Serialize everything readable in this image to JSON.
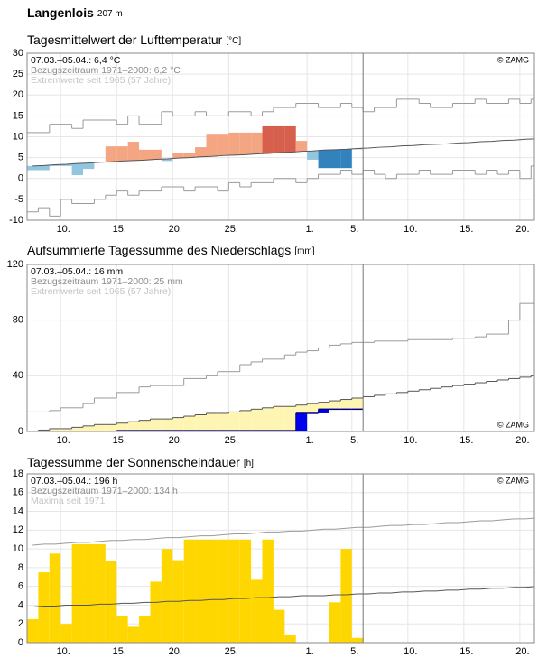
{
  "header": {
    "title": "Langenlois",
    "elevation": "207 m"
  },
  "chart_data": [
    {
      "type": "bar",
      "title": "Tagesmittelwert der Lufttemperatur",
      "unit": "[°C]",
      "notes": [
        "07.03.–05.04.: 6,4 °C",
        "Bezugszeitraum 1971–2000: 6,2 °C",
        "Extremwerte seit 1965 (57 Jahre)"
      ],
      "note_colors": [
        "#000000",
        "#8c8c8c",
        "#c4c4c4"
      ],
      "copyright": "© ZAMG",
      "copyright_corner": "top-right",
      "xlim": [
        0,
        45.3
      ],
      "xticks": [
        {
          "value": 3,
          "label": "10."
        },
        {
          "value": 8,
          "label": "15."
        },
        {
          "value": 13,
          "label": "20."
        },
        {
          "value": 18,
          "label": "25."
        },
        {
          "value": 25,
          "label": "1."
        },
        {
          "value": 29,
          "label": "5."
        },
        {
          "value": 34,
          "label": "10."
        },
        {
          "value": 39,
          "label": "15."
        },
        {
          "value": 44,
          "label": "20."
        }
      ],
      "ylim": [
        -10,
        30
      ],
      "yticks": [
        -10,
        -5,
        0,
        5,
        10,
        15,
        20,
        25,
        30
      ],
      "grid": true,
      "series": [
        {
          "style": "bars",
          "base_series": 1,
          "values": [
            2,
            2,
            3,
            3,
            0.8,
            2.3,
            3.8,
            7.7,
            7.7,
            8.8,
            6.9,
            6.9,
            4.2,
            6,
            6,
            7.5,
            10.5,
            10.5,
            11,
            11,
            11,
            12.5,
            12.5,
            12.5,
            9,
            4.5,
            2.5,
            2.5,
            2.5,
            7
          ],
          "colors": [
            "#92c5de",
            "#92c5de",
            "#92c5de",
            "#92c5de",
            "#92c5de",
            "#92c5de",
            "#92c5de",
            "#f4a582",
            "#f4a582",
            "#f4a582",
            "#f4a582",
            "#f4a582",
            "#92c5de",
            "#f4a582",
            "#f4a582",
            "#f4a582",
            "#f4a582",
            "#f4a582",
            "#f4a582",
            "#f4a582",
            "#f4a582",
            "#d6604d",
            "#d6604d",
            "#d6604d",
            "#f4a582",
            "#92c5de",
            "#3182bd",
            "#3182bd",
            "#3182bd",
            "#92c5de"
          ]
        },
        {
          "style": "line",
          "color": "#555555",
          "values": [
            3.0,
            3.1,
            3.3,
            3.4,
            3.6,
            3.7,
            3.9,
            4.0,
            4.2,
            4.3,
            4.4,
            4.6,
            4.7,
            4.9,
            5.0,
            5.2,
            5.3,
            5.5,
            5.6,
            5.7,
            5.9,
            6.0,
            6.2,
            6.3,
            6.5,
            6.6,
            6.8,
            6.9,
            7.0,
            7.2,
            7.3,
            7.5,
            7.6,
            7.8,
            7.9,
            8.1,
            8.2,
            8.3,
            8.5,
            8.6,
            8.8,
            8.9,
            9.1,
            9.2,
            9.4,
            9.5
          ]
        },
        {
          "style": "step",
          "color": "#9a9a9a",
          "values": [
            11,
            11,
            13,
            13,
            12,
            14,
            14,
            14,
            13,
            15,
            13,
            13,
            16,
            15,
            15,
            16,
            15,
            15,
            16,
            16,
            15,
            16,
            17,
            17,
            18,
            18,
            17,
            17,
            18,
            17,
            16,
            17,
            17,
            19,
            19,
            18,
            17,
            17,
            18,
            18,
            19,
            18,
            18,
            19,
            18,
            19
          ]
        },
        {
          "style": "step",
          "color": "#9a9a9a",
          "values": [
            -8,
            -7,
            -9,
            -5,
            -6,
            -6,
            -5,
            -4,
            -3,
            -4,
            -3,
            -3,
            -2,
            -2,
            -3,
            -2,
            -2,
            -3,
            -1,
            -2,
            -1,
            -1,
            0,
            0,
            -1,
            0,
            1,
            1,
            2,
            1,
            2,
            1,
            0,
            1,
            1,
            2,
            1,
            1,
            2,
            2,
            1,
            2,
            1,
            2,
            0,
            3
          ]
        }
      ]
    },
    {
      "type": "area",
      "title": "Aufsummierte Tagessumme des Niederschlags",
      "unit": "[mm]",
      "notes": [
        "07.03.–05.04.: 16 mm",
        "Bezugszeitraum 1971–2000: 25 mm",
        "Extremwerte seit 1965 (57 Jahre)"
      ],
      "note_colors": [
        "#000000",
        "#8c8c8c",
        "#c4c4c4"
      ],
      "copyright": "© ZAMG",
      "copyright_corner": "bottom-right",
      "xlim": [
        0,
        45.3
      ],
      "xticks": [
        {
          "value": 3,
          "label": "10."
        },
        {
          "value": 8,
          "label": "15."
        },
        {
          "value": 13,
          "label": "20."
        },
        {
          "value": 18,
          "label": "25."
        },
        {
          "value": 25,
          "label": "1."
        },
        {
          "value": 29,
          "label": "5."
        },
        {
          "value": 34,
          "label": "10."
        },
        {
          "value": 39,
          "label": "15."
        },
        {
          "value": 44,
          "label": "20."
        }
      ],
      "ylim": [
        0,
        120
      ],
      "yticks": [
        0,
        40,
        80,
        120
      ],
      "grid": true,
      "series": [
        {
          "style": "step",
          "color": "#00008b",
          "increment_color": "#0000ee",
          "values": [
            0,
            0,
            0,
            0,
            0,
            0,
            0,
            0,
            0.6,
            0.6,
            0.6,
            0.6,
            0.6,
            0.6,
            0.6,
            0.6,
            0.6,
            0.6,
            0.6,
            0.6,
            0.6,
            0.6,
            0.6,
            0.6,
            13,
            13,
            16,
            16,
            16,
            16
          ]
        },
        {
          "style": "step",
          "color": "#555555",
          "fill_from": 0,
          "fill": "#fff5b3",
          "values": [
            0,
            1,
            2,
            2,
            3,
            4,
            5,
            5,
            6,
            7,
            8,
            9,
            9,
            10,
            11,
            12,
            13,
            13,
            14,
            15,
            16,
            17,
            18,
            18,
            19,
            20,
            21,
            22,
            23,
            24,
            25,
            26,
            27,
            28,
            29,
            30,
            31,
            32,
            33,
            34,
            35,
            36,
            37,
            38,
            39,
            40
          ]
        },
        {
          "style": "step",
          "color": "#9a9a9a",
          "values": [
            14,
            14,
            15,
            17,
            17,
            20,
            24,
            24,
            28,
            28,
            32,
            33,
            33,
            33,
            38,
            38,
            40,
            43,
            43,
            48,
            50,
            52,
            52,
            55,
            57,
            58,
            60,
            62,
            63,
            64,
            64,
            65,
            65,
            65,
            66,
            66,
            66,
            66,
            67,
            67,
            68,
            70,
            70,
            80,
            92,
            92
          ]
        }
      ]
    },
    {
      "type": "bar",
      "title": "Tagessumme der Sonnenscheindauer",
      "unit": "[h]",
      "notes": [
        "07.03.–05.04.: 196 h",
        "Bezugszeitraum 1971–2000: 134 h",
        "Maxima seit 1971"
      ],
      "note_colors": [
        "#000000",
        "#8c8c8c",
        "#c4c4c4"
      ],
      "copyright": "© ZAMG",
      "copyright_corner": "top-right",
      "xlim": [
        0,
        45.3
      ],
      "xticks": [
        {
          "value": 3,
          "label": "10."
        },
        {
          "value": 8,
          "label": "15."
        },
        {
          "value": 13,
          "label": "20."
        },
        {
          "value": 18,
          "label": "25."
        },
        {
          "value": 25,
          "label": "1."
        },
        {
          "value": 29,
          "label": "5."
        },
        {
          "value": 34,
          "label": "10."
        },
        {
          "value": 39,
          "label": "15."
        },
        {
          "value": 44,
          "label": "20."
        }
      ],
      "ylim": [
        0,
        18
      ],
      "yticks": [
        0,
        2,
        4,
        6,
        8,
        10,
        12,
        14,
        16,
        18
      ],
      "grid": true,
      "series": [
        {
          "style": "bars",
          "color": "#ffd700",
          "values": [
            2.5,
            7.5,
            9.5,
            2,
            10.5,
            10.5,
            10.5,
            8.7,
            2.8,
            1.7,
            2.8,
            6.5,
            10,
            8.8,
            11,
            11,
            11,
            11,
            11,
            11,
            6.7,
            11,
            3.5,
            0.8,
            0,
            0,
            0,
            4.3,
            10,
            0.5
          ]
        },
        {
          "style": "line",
          "color": "#555555",
          "values": [
            3.8,
            3.9,
            3.9,
            4.0,
            4.0,
            4.0,
            4.1,
            4.1,
            4.2,
            4.2,
            4.3,
            4.3,
            4.4,
            4.4,
            4.5,
            4.5,
            4.6,
            4.6,
            4.7,
            4.7,
            4.8,
            4.8,
            4.9,
            4.9,
            5.0,
            5.0,
            5.0,
            5.1,
            5.1,
            5.2,
            5.2,
            5.3,
            5.3,
            5.4,
            5.4,
            5.5,
            5.5,
            5.6,
            5.6,
            5.7,
            5.7,
            5.8,
            5.8,
            5.9,
            5.9,
            6.0
          ]
        },
        {
          "style": "line",
          "color": "#9a9a9a",
          "values": [
            10.4,
            10.5,
            10.5,
            10.6,
            10.7,
            10.7,
            10.8,
            10.9,
            10.9,
            11.0,
            11.0,
            11.1,
            11.2,
            11.2,
            11.3,
            11.4,
            11.4,
            11.5,
            11.6,
            11.6,
            11.7,
            11.8,
            11.8,
            11.9,
            11.9,
            12.0,
            12.1,
            12.1,
            12.2,
            12.3,
            12.3,
            12.4,
            12.5,
            12.5,
            12.6,
            12.6,
            12.7,
            12.8,
            12.8,
            12.9,
            13.0,
            13.0,
            13.1,
            13.2,
            13.2,
            13.3
          ]
        }
      ]
    }
  ]
}
